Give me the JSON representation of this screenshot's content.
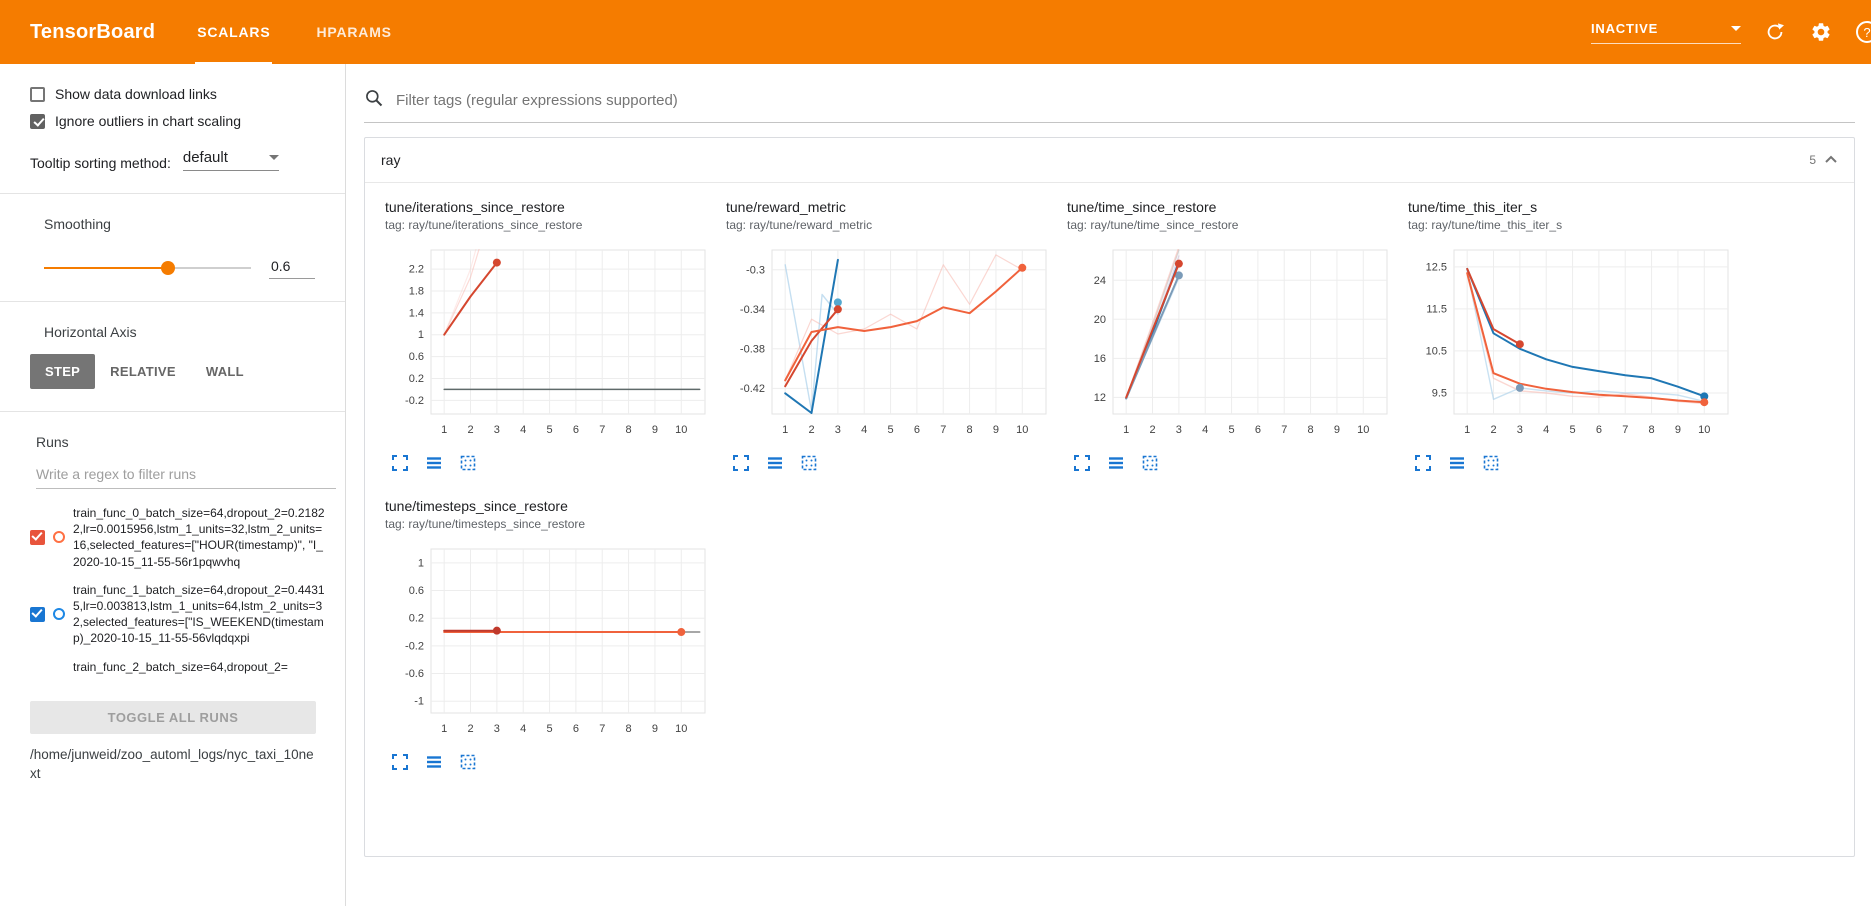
{
  "header": {
    "title": "TensorBoard",
    "tabs": [
      {
        "label": "SCALARS",
        "active": true
      },
      {
        "label": "HPARAMS",
        "active": false
      }
    ],
    "status_select": {
      "value": "INACTIVE"
    },
    "icons": [
      {
        "name": "refresh-icon"
      },
      {
        "name": "settings-icon"
      },
      {
        "name": "help-icon",
        "glyph": "?"
      }
    ]
  },
  "sidebar": {
    "show_download": {
      "label": "Show data download links",
      "checked": false
    },
    "ignore_outliers": {
      "label": "Ignore outliers in chart scaling",
      "checked": true
    },
    "tooltip_sorting": {
      "label": "Tooltip sorting method:",
      "value": "default"
    },
    "smoothing": {
      "label": "Smoothing",
      "value": "0.6",
      "percent": 60
    },
    "horizontal_axis": {
      "label": "Horizontal Axis",
      "options": [
        {
          "label": "STEP",
          "active": true
        },
        {
          "label": "RELATIVE",
          "active": false
        },
        {
          "label": "WALL",
          "active": false
        }
      ]
    },
    "runs": {
      "label": "Runs",
      "filter_placeholder": "Write a regex to filter runs",
      "items": [
        {
          "label": "train_func_0_batch_size=64,dropout_2=0.21822,lr=0.0015956,lstm_1_units=32,lstm_2_units=16,selected_features=[\"HOUR(timestamp)\", \"I_2020-10-15_11-55-56r1pqwvhq",
          "checkbox_color": "#e8543c",
          "ring_color": "#ff7043",
          "checked": true,
          "clipped": false
        },
        {
          "label": "train_func_1_batch_size=64,dropout_2=0.44315,lr=0.003813,lstm_1_units=64,lstm_2_units=32,selected_features=[\"IS_WEEKEND(timestamp)_2020-10-15_11-55-56vlqdqxpi",
          "checkbox_color": "#1976d2",
          "ring_color": "#1e88e5",
          "checked": true,
          "clipped": false
        },
        {
          "label": "train_func_2_batch_size=64,dropout_2=",
          "checkbox_color": "#9e9e9e",
          "ring_color": "#9e9e9e",
          "checked": true,
          "clipped": true
        }
      ],
      "toggle_all_label": "TOGGLE ALL RUNS"
    },
    "log_path": "/home/junweid/zoo_automl_logs/nyc_taxi_10next"
  },
  "main": {
    "filter_placeholder": "Filter tags (regular expressions supported)",
    "section": {
      "title": "ray",
      "count": "5"
    }
  },
  "chart_toolbar_icons": [
    "expand-chart-icon",
    "runs-menu-icon",
    "fit-domain-icon"
  ],
  "chart_data": [
    {
      "type": "line",
      "title": "tune/iterations_since_restore",
      "tag": "tag: ray/tune/iterations_since_restore",
      "xlim": [
        0.5,
        10.9
      ],
      "ylim": [
        -0.45,
        2.55
      ],
      "xticks": [
        1,
        2,
        3,
        4,
        5,
        6,
        7,
        8,
        9,
        10
      ],
      "yticks": [
        -0.2,
        0.2,
        0.6,
        1,
        1.4,
        1.8,
        2.2
      ],
      "ytick_labels": [
        "-0.2",
        "0.2",
        "0.6",
        "1",
        "1.4",
        "1.8",
        "2.2"
      ],
      "grid": true,
      "series": [
        {
          "name": "train_func_0 raw",
          "color": "#f8b0a6",
          "width": 1.2,
          "opacity": 0.45,
          "points": [
            [
              1,
              1
            ],
            [
              2,
              2.05
            ],
            [
              2.6,
              3
            ]
          ]
        },
        {
          "name": "train_func_0 raw b",
          "color": "#fbcdc7",
          "width": 1.2,
          "opacity": 0.4,
          "points": [
            [
              1,
              1
            ],
            [
              2,
              2.2
            ],
            [
              2.45,
              3
            ]
          ]
        },
        {
          "name": "train_func_0 smoothed",
          "color": "#d5472f",
          "width": 2,
          "opacity": 1,
          "end_dot": true,
          "points": [
            [
              1,
              1
            ],
            [
              2,
              1.7
            ],
            [
              3,
              2.32
            ]
          ]
        },
        {
          "name": "constant zero run",
          "color": "#5f6a6a",
          "width": 1.5,
          "opacity": 1,
          "points": [
            [
              1,
              0
            ],
            [
              10.7,
              0
            ]
          ]
        }
      ]
    },
    {
      "type": "line",
      "title": "tune/reward_metric",
      "tag": "tag: ray/tune/reward_metric",
      "xlim": [
        0.5,
        10.9
      ],
      "ylim": [
        -0.446,
        -0.28
      ],
      "xticks": [
        1,
        2,
        3,
        4,
        5,
        6,
        7,
        8,
        9,
        10
      ],
      "yticks": [
        -0.42,
        -0.38,
        -0.34,
        -0.3
      ],
      "ytick_labels": [
        "-0.42",
        "-0.38",
        "-0.34",
        "-0.3"
      ],
      "grid": true,
      "series": [
        {
          "name": "train_func_1 raw",
          "color": "#9ecae8",
          "width": 1.4,
          "opacity": 0.6,
          "points": [
            [
              1,
              -0.295
            ],
            [
              2,
              -0.443
            ],
            [
              2.4,
              -0.325
            ],
            [
              3,
              -0.345
            ]
          ]
        },
        {
          "name": "train_func_0 raw",
          "color": "#f8b0a6",
          "width": 1.2,
          "opacity": 0.5,
          "points": [
            [
              1,
              -0.412
            ],
            [
              2,
              -0.35
            ],
            [
              3,
              -0.365
            ],
            [
              4,
              -0.36
            ],
            [
              5,
              -0.345
            ],
            [
              6,
              -0.36
            ],
            [
              7,
              -0.295
            ],
            [
              8,
              -0.335
            ],
            [
              9,
              -0.285
            ],
            [
              10,
              -0.3
            ]
          ]
        },
        {
          "name": "train_func_1 smoothed",
          "color": "#1f77b4",
          "width": 2,
          "opacity": 1,
          "points": [
            [
              1,
              -0.425
            ],
            [
              2,
              -0.445
            ],
            [
              3,
              -0.29
            ]
          ]
        },
        {
          "name": "train_func_1 marker",
          "color": "#54a8d0",
          "width": 2,
          "opacity": 1,
          "end_dot": true,
          "points": [
            [
              3,
              -0.333
            ]
          ]
        },
        {
          "name": "train_func_2 smoothed",
          "color": "#d5472f",
          "width": 2,
          "opacity": 1,
          "end_dot": true,
          "points": [
            [
              1,
              -0.418
            ],
            [
              2,
              -0.372
            ],
            [
              3,
              -0.34
            ]
          ]
        },
        {
          "name": "train_func_0 smoothed",
          "color": "#f0623c",
          "width": 2,
          "opacity": 1,
          "end_dot": true,
          "points": [
            [
              1,
              -0.412
            ],
            [
              2,
              -0.363
            ],
            [
              3,
              -0.358
            ],
            [
              4,
              -0.362
            ],
            [
              5,
              -0.358
            ],
            [
              6,
              -0.352
            ],
            [
              7,
              -0.338
            ],
            [
              8,
              -0.344
            ],
            [
              9,
              -0.322
            ],
            [
              10,
              -0.298
            ]
          ]
        }
      ]
    },
    {
      "type": "line",
      "title": "tune/time_since_restore",
      "tag": "tag: ray/tune/time_since_restore",
      "xlim": [
        0.5,
        10.9
      ],
      "ylim": [
        10.3,
        27.1
      ],
      "xticks": [
        1,
        2,
        3,
        4,
        5,
        6,
        7,
        8,
        9,
        10
      ],
      "yticks": [
        12,
        16,
        20,
        24
      ],
      "ytick_labels": [
        "12",
        "16",
        "20",
        "24"
      ],
      "grid": true,
      "series": [
        {
          "name": "raw gray",
          "color": "#bdbdbd",
          "width": 1.3,
          "opacity": 0.6,
          "points": [
            [
              1,
              12
            ],
            [
              2,
              19.3
            ],
            [
              3,
              27.1
            ]
          ]
        },
        {
          "name": "raw pink",
          "color": "#f8b0a6",
          "width": 1.3,
          "opacity": 0.5,
          "points": [
            [
              1,
              12
            ],
            [
              2,
              19.6
            ],
            [
              3,
              27.4
            ]
          ]
        },
        {
          "name": "raw lavender",
          "color": "#c5b0d5",
          "width": 1.3,
          "opacity": 0.45,
          "points": [
            [
              1,
              12
            ],
            [
              2,
              18.8
            ],
            [
              3,
              26.5
            ]
          ]
        },
        {
          "name": "raw lightblue",
          "color": "#9ecae8",
          "width": 1.3,
          "opacity": 0.45,
          "points": [
            [
              1,
              12
            ],
            [
              2,
              18.0
            ],
            [
              3,
              24.2
            ]
          ]
        },
        {
          "name": "train_func_1 smoothed",
          "color": "#1f77b4",
          "width": 2,
          "opacity": 1,
          "points": [
            [
              1,
              11.9
            ],
            [
              2,
              18.6
            ],
            [
              3,
              25.9
            ]
          ]
        },
        {
          "name": "train_func_3 smoothed",
          "color": "#7b9bb8",
          "width": 2,
          "opacity": 1,
          "end_dot": true,
          "points": [
            [
              1,
              11.9
            ],
            [
              2,
              18.2
            ],
            [
              3,
              24.5
            ]
          ]
        },
        {
          "name": "train_func_2 smoothed",
          "color": "#d5472f",
          "width": 2,
          "opacity": 1,
          "end_dot": true,
          "points": [
            [
              1,
              12
            ],
            [
              2,
              18.9
            ],
            [
              3,
              25.7
            ]
          ]
        }
      ]
    },
    {
      "type": "line",
      "title": "tune/time_this_iter_s",
      "tag": "tag: ray/tune/time_this_iter_s",
      "xlim": [
        0.5,
        10.9
      ],
      "ylim": [
        9.0,
        12.9
      ],
      "xticks": [
        1,
        2,
        3,
        4,
        5,
        6,
        7,
        8,
        9,
        10
      ],
      "yticks": [
        9.5,
        10.5,
        11.5,
        12.5
      ],
      "ytick_labels": [
        "9.5",
        "10.5",
        "11.5",
        "12.5"
      ],
      "grid": true,
      "series": [
        {
          "name": "train_func_1 raw",
          "color": "#9ecae8",
          "width": 1.4,
          "opacity": 0.55,
          "points": [
            [
              1,
              12.4
            ],
            [
              2,
              9.35
            ],
            [
              3,
              9.62
            ],
            [
              4,
              9.55
            ],
            [
              5,
              9.5
            ],
            [
              6,
              9.55
            ],
            [
              7,
              9.5
            ],
            [
              8,
              9.5
            ],
            [
              9,
              9.45
            ],
            [
              10,
              9.3
            ]
          ]
        },
        {
          "name": "train_func_0 raw",
          "color": "#f8b0a6",
          "width": 1.4,
          "opacity": 0.5,
          "points": [
            [
              1,
              12.3
            ],
            [
              2,
              9.85
            ],
            [
              3,
              9.55
            ],
            [
              4,
              9.5
            ],
            [
              5,
              9.42
            ],
            [
              6,
              9.4
            ],
            [
              7,
              9.48
            ],
            [
              8,
              9.4
            ],
            [
              9,
              9.3
            ],
            [
              10,
              9.25
            ]
          ]
        },
        {
          "name": "train_func_1 smoothed",
          "color": "#1f77b4",
          "width": 2,
          "opacity": 1,
          "end_dot": true,
          "points": [
            [
              1,
              12.45
            ],
            [
              2,
              10.92
            ],
            [
              3,
              10.55
            ],
            [
              4,
              10.3
            ],
            [
              5,
              10.12
            ],
            [
              6,
              10.02
            ],
            [
              7,
              9.92
            ],
            [
              8,
              9.85
            ],
            [
              9,
              9.65
            ],
            [
              10,
              9.42
            ]
          ]
        },
        {
          "name": "train_func_0 smoothed",
          "color": "#f0623c",
          "width": 2,
          "opacity": 1,
          "end_dot": true,
          "points": [
            [
              1,
              12.35
            ],
            [
              2,
              9.97
            ],
            [
              3,
              9.72
            ],
            [
              4,
              9.6
            ],
            [
              5,
              9.52
            ],
            [
              6,
              9.46
            ],
            [
              7,
              9.42
            ],
            [
              8,
              9.38
            ],
            [
              9,
              9.32
            ],
            [
              10,
              9.28
            ]
          ]
        },
        {
          "name": "train_func_2 smoothed",
          "color": "#d5472f",
          "width": 2,
          "opacity": 1,
          "end_dot": true,
          "points": [
            [
              1,
              12.45
            ],
            [
              2,
              11.02
            ],
            [
              3,
              10.66
            ]
          ]
        },
        {
          "name": "train_func_3 marker",
          "color": "#7b9bb8",
          "width": 2,
          "opacity": 1,
          "end_dot": true,
          "points": [
            [
              3,
              9.62
            ]
          ]
        }
      ]
    },
    {
      "type": "line",
      "title": "tune/timesteps_since_restore",
      "tag": "tag: ray/tune/timesteps_since_restore",
      "xlim": [
        0.5,
        10.9
      ],
      "ylim": [
        -1.17,
        1.2
      ],
      "xticks": [
        1,
        2,
        3,
        4,
        5,
        6,
        7,
        8,
        9,
        10
      ],
      "yticks": [
        -1,
        -0.6,
        -0.2,
        0.2,
        0.6,
        1
      ],
      "ytick_labels": [
        "-1",
        "-0.6",
        "-0.2",
        "0.2",
        "0.6",
        "1"
      ],
      "grid": true,
      "series": [
        {
          "name": "constant zero gray",
          "color": "#8a8a8a",
          "width": 1.5,
          "opacity": 1,
          "points": [
            [
              1,
              0
            ],
            [
              10.7,
              0
            ]
          ]
        },
        {
          "name": "train_func_0 smoothed",
          "color": "#f0623c",
          "width": 2,
          "opacity": 1,
          "end_dot": true,
          "points": [
            [
              1,
              0
            ],
            [
              10,
              0
            ]
          ]
        },
        {
          "name": "train_func_2 smoothed",
          "color": "#c0392b",
          "width": 2,
          "opacity": 1,
          "end_dot": true,
          "points": [
            [
              1,
              0.02
            ],
            [
              3,
              0.02
            ]
          ]
        }
      ]
    }
  ]
}
